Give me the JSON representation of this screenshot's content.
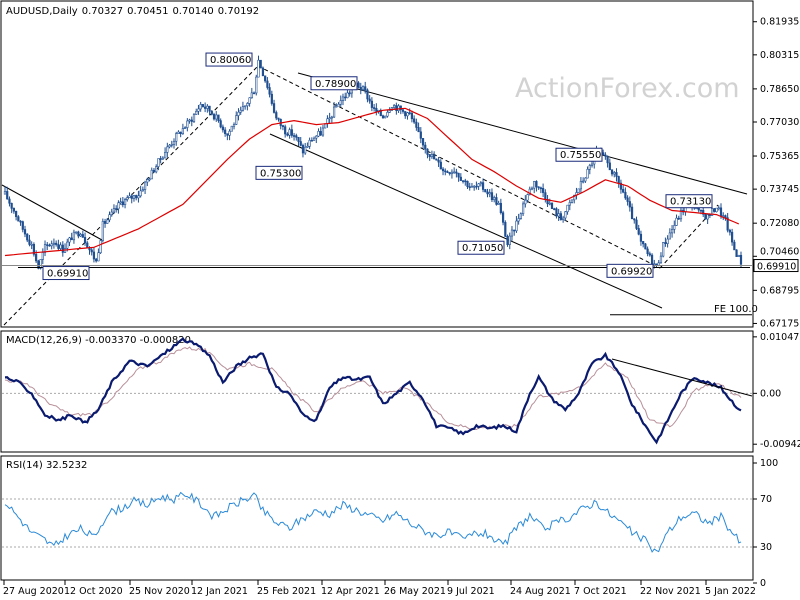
{
  "chart_data": {
    "type": "candlestick",
    "symbol_header": "AUDUSD,Daily",
    "ohlc": {
      "open": "0.70327",
      "high": "0.70451",
      "low": "0.70140",
      "close": "0.70192"
    },
    "watermark": "ActionForex.com",
    "x_tick_labels": [
      "27 Aug 2020",
      "12 Oct 2020",
      "25 Nov 2020",
      "12 Jan 2021",
      "25 Feb 2021",
      "12 Apr 2021",
      "26 May 2021",
      "9 Jul 2021",
      "24 Aug 2021",
      "7 Oct 2021",
      "22 Nov 2021",
      "5 Jan 2022"
    ],
    "price_panel": {
      "y_ticks": [
        "0.81935",
        "0.80315",
        "0.78650",
        "0.77030",
        "0.75365",
        "0.73745",
        "0.72080",
        "0.70460",
        "0.68795",
        "0.67175"
      ],
      "ylim": [
        0.6705,
        0.829
      ],
      "current_price": "0.69910",
      "hidden_price": "0.70192",
      "ma_color": "#dd0000",
      "candle_color": "#1f4e8f",
      "annotated_levels": [
        {
          "text": "0.80060",
          "value": 0.8006
        },
        {
          "text": "0.78900",
          "value": 0.789
        },
        {
          "text": "0.75300",
          "value": 0.753
        },
        {
          "text": "0.75550",
          "value": 0.7555
        },
        {
          "text": "0.73130",
          "value": 0.7313
        },
        {
          "text": "0.71050",
          "value": 0.7105
        },
        {
          "text": "0.69920",
          "value": 0.6992
        },
        {
          "text": "0.69910",
          "value": 0.6991
        }
      ],
      "fib_label": "FE 100.0",
      "fib_value": 0.676,
      "price_path": [
        [
          0,
          0.735
        ],
        [
          4,
          0.727
        ],
        [
          8,
          0.718
        ],
        [
          12,
          0.71
        ],
        [
          15,
          0.6991
        ],
        [
          18,
          0.709
        ],
        [
          22,
          0.712
        ],
        [
          26,
          0.708
        ],
        [
          30,
          0.714
        ],
        [
          34,
          0.717
        ],
        [
          38,
          0.708
        ],
        [
          41,
          0.702
        ],
        [
          44,
          0.72
        ],
        [
          48,
          0.725
        ],
        [
          52,
          0.731
        ],
        [
          56,
          0.733
        ],
        [
          60,
          0.735
        ],
        [
          64,
          0.742
        ],
        [
          68,
          0.749
        ],
        [
          72,
          0.756
        ],
        [
          76,
          0.762
        ],
        [
          80,
          0.767
        ],
        [
          84,
          0.772
        ],
        [
          88,
          0.779
        ],
        [
          92,
          0.776
        ],
        [
          96,
          0.771
        ],
        [
          100,
          0.764
        ],
        [
          104,
          0.772
        ],
        [
          108,
          0.778
        ],
        [
          112,
          0.786
        ],
        [
          114,
          0.8006
        ],
        [
          118,
          0.788
        ],
        [
          122,
          0.772
        ],
        [
          126,
          0.766
        ],
        [
          130,
          0.764
        ],
        [
          134,
          0.756
        ],
        [
          138,
          0.762
        ],
        [
          142,
          0.765
        ],
        [
          146,
          0.772
        ],
        [
          150,
          0.78
        ],
        [
          154,
          0.784
        ],
        [
          158,
          0.789
        ],
        [
          162,
          0.785
        ],
        [
          166,
          0.776
        ],
        [
          170,
          0.773
        ],
        [
          174,
          0.779
        ],
        [
          178,
          0.776
        ],
        [
          182,
          0.774
        ],
        [
          186,
          0.764
        ],
        [
          190,
          0.756
        ],
        [
          194,
          0.751
        ],
        [
          198,
          0.746
        ],
        [
          202,
          0.747
        ],
        [
          206,
          0.742
        ],
        [
          210,
          0.738
        ],
        [
          214,
          0.739
        ],
        [
          218,
          0.735
        ],
        [
          222,
          0.73
        ],
        [
          226,
          0.7105
        ],
        [
          230,
          0.721
        ],
        [
          234,
          0.733
        ],
        [
          238,
          0.741
        ],
        [
          242,
          0.736
        ],
        [
          246,
          0.728
        ],
        [
          250,
          0.723
        ],
        [
          254,
          0.73
        ],
        [
          258,
          0.738
        ],
        [
          262,
          0.746
        ],
        [
          266,
          0.7555
        ],
        [
          270,
          0.752
        ],
        [
          274,
          0.744
        ],
        [
          278,
          0.736
        ],
        [
          282,
          0.724
        ],
        [
          286,
          0.711
        ],
        [
          290,
          0.704
        ],
        [
          293,
          0.6992
        ],
        [
          296,
          0.71
        ],
        [
          300,
          0.718
        ],
        [
          304,
          0.726
        ],
        [
          308,
          0.7313
        ],
        [
          312,
          0.726
        ],
        [
          316,
          0.724
        ],
        [
          320,
          0.729
        ],
        [
          324,
          0.722
        ],
        [
          328,
          0.708
        ],
        [
          331,
          0.7019
        ]
      ],
      "ma_path": [
        [
          0,
          0.705
        ],
        [
          20,
          0.707
        ],
        [
          40,
          0.709
        ],
        [
          60,
          0.718
        ],
        [
          80,
          0.73
        ],
        [
          100,
          0.752
        ],
        [
          110,
          0.762
        ],
        [
          120,
          0.769
        ],
        [
          130,
          0.771
        ],
        [
          140,
          0.769
        ],
        [
          150,
          0.77
        ],
        [
          160,
          0.773
        ],
        [
          170,
          0.776
        ],
        [
          180,
          0.777
        ],
        [
          190,
          0.772
        ],
        [
          200,
          0.762
        ],
        [
          210,
          0.752
        ],
        [
          220,
          0.746
        ],
        [
          230,
          0.739
        ],
        [
          240,
          0.733
        ],
        [
          250,
          0.731
        ],
        [
          260,
          0.736
        ],
        [
          270,
          0.742
        ],
        [
          280,
          0.739
        ],
        [
          290,
          0.732
        ],
        [
          300,
          0.727
        ],
        [
          310,
          0.726
        ],
        [
          320,
          0.725
        ],
        [
          331,
          0.72
        ]
      ]
    },
    "macd_panel": {
      "label": "MACD(12,26,9) -0.003370 -0.000820",
      "y_ticks": [
        "0.010472",
        "0.00",
        "-0.009426"
      ],
      "ylim": [
        -0.0105,
        0.011
      ],
      "macd_color": "#0a1a6e",
      "signal_color": "#b8909a",
      "macd": [
        [
          0,
          0.003
        ],
        [
          6,
          0.002
        ],
        [
          12,
          0.0
        ],
        [
          18,
          -0.004
        ],
        [
          24,
          -0.005
        ],
        [
          30,
          -0.004
        ],
        [
          36,
          -0.0055
        ],
        [
          42,
          -0.003
        ],
        [
          48,
          0.002
        ],
        [
          56,
          0.006
        ],
        [
          64,
          0.005
        ],
        [
          72,
          0.0075
        ],
        [
          80,
          0.01
        ],
        [
          86,
          0.009
        ],
        [
          92,
          0.007
        ],
        [
          98,
          0.002
        ],
        [
          104,
          0.005
        ],
        [
          110,
          0.0065
        ],
        [
          116,
          0.0075
        ],
        [
          122,
          0.001
        ],
        [
          128,
          0.0
        ],
        [
          134,
          -0.004
        ],
        [
          140,
          -0.005
        ],
        [
          146,
          0.001
        ],
        [
          152,
          0.003
        ],
        [
          158,
          0.0025
        ],
        [
          164,
          0.003
        ],
        [
          170,
          -0.002
        ],
        [
          176,
          0.0
        ],
        [
          182,
          0.002
        ],
        [
          188,
          -0.001
        ],
        [
          194,
          -0.006
        ],
        [
          200,
          -0.0065
        ],
        [
          206,
          -0.0075
        ],
        [
          212,
          -0.006
        ],
        [
          218,
          -0.0065
        ],
        [
          224,
          -0.006
        ],
        [
          230,
          -0.007
        ],
        [
          236,
          0.0
        ],
        [
          240,
          0.003
        ],
        [
          246,
          -0.001
        ],
        [
          252,
          -0.003
        ],
        [
          258,
          0.0
        ],
        [
          264,
          0.0055
        ],
        [
          270,
          0.007
        ],
        [
          276,
          0.004
        ],
        [
          282,
          -0.002
        ],
        [
          288,
          -0.006
        ],
        [
          293,
          -0.009
        ],
        [
          298,
          -0.005
        ],
        [
          304,
          0.0
        ],
        [
          310,
          0.003
        ],
        [
          316,
          0.002
        ],
        [
          322,
          0.001
        ],
        [
          326,
          -0.001
        ],
        [
          331,
          -0.0034
        ]
      ],
      "signal": [
        [
          0,
          0.0025
        ],
        [
          10,
          0.0018
        ],
        [
          20,
          -0.002
        ],
        [
          30,
          -0.004
        ],
        [
          40,
          -0.0038
        ],
        [
          50,
          0.0
        ],
        [
          60,
          0.0045
        ],
        [
          70,
          0.006
        ],
        [
          80,
          0.0085
        ],
        [
          90,
          0.008
        ],
        [
          100,
          0.0045
        ],
        [
          110,
          0.0055
        ],
        [
          120,
          0.0045
        ],
        [
          130,
          0.0
        ],
        [
          140,
          -0.0035
        ],
        [
          150,
          0.0005
        ],
        [
          160,
          0.0025
        ],
        [
          170,
          0.0
        ],
        [
          180,
          0.001
        ],
        [
          190,
          -0.002
        ],
        [
          200,
          -0.0055
        ],
        [
          210,
          -0.0065
        ],
        [
          220,
          -0.0062
        ],
        [
          230,
          -0.006
        ],
        [
          240,
          -0.0005
        ],
        [
          250,
          0.0
        ],
        [
          260,
          0.0015
        ],
        [
          270,
          0.0055
        ],
        [
          280,
          0.003
        ],
        [
          290,
          -0.005
        ],
        [
          300,
          -0.006
        ],
        [
          310,
          0.0005
        ],
        [
          320,
          0.002
        ],
        [
          331,
          -0.0008
        ]
      ]
    },
    "rsi_panel": {
      "label": "RSI(14) 32.5232",
      "y_ticks": [
        "100",
        "70",
        "30",
        "0"
      ],
      "ylim": [
        0,
        100
      ],
      "levels": [
        70,
        30
      ],
      "rsi_color": "#2a8ad8",
      "rsi": [
        [
          0,
          68
        ],
        [
          6,
          55
        ],
        [
          12,
          42
        ],
        [
          18,
          36
        ],
        [
          22,
          30
        ],
        [
          28,
          40
        ],
        [
          34,
          45
        ],
        [
          40,
          38
        ],
        [
          46,
          58
        ],
        [
          52,
          62
        ],
        [
          58,
          68
        ],
        [
          64,
          65
        ],
        [
          70,
          72
        ],
        [
          76,
          70
        ],
        [
          82,
          74
        ],
        [
          88,
          66
        ],
        [
          94,
          55
        ],
        [
          100,
          62
        ],
        [
          106,
          68
        ],
        [
          112,
          73
        ],
        [
          116,
          60
        ],
        [
          122,
          50
        ],
        [
          128,
          46
        ],
        [
          134,
          54
        ],
        [
          140,
          60
        ],
        [
          146,
          58
        ],
        [
          152,
          65
        ],
        [
          158,
          61
        ],
        [
          164,
          56
        ],
        [
          170,
          52
        ],
        [
          176,
          58
        ],
        [
          182,
          50
        ],
        [
          188,
          44
        ],
        [
          194,
          40
        ],
        [
          200,
          42
        ],
        [
          206,
          36
        ],
        [
          212,
          42
        ],
        [
          218,
          40
        ],
        [
          224,
          30
        ],
        [
          230,
          46
        ],
        [
          236,
          56
        ],
        [
          242,
          45
        ],
        [
          248,
          50
        ],
        [
          254,
          55
        ],
        [
          260,
          62
        ],
        [
          266,
          68
        ],
        [
          270,
          60
        ],
        [
          276,
          52
        ],
        [
          282,
          42
        ],
        [
          288,
          35
        ],
        [
          293,
          25
        ],
        [
          298,
          42
        ],
        [
          304,
          55
        ],
        [
          310,
          58
        ],
        [
          316,
          50
        ],
        [
          322,
          55
        ],
        [
          328,
          40
        ],
        [
          331,
          32.5
        ]
      ]
    }
  }
}
